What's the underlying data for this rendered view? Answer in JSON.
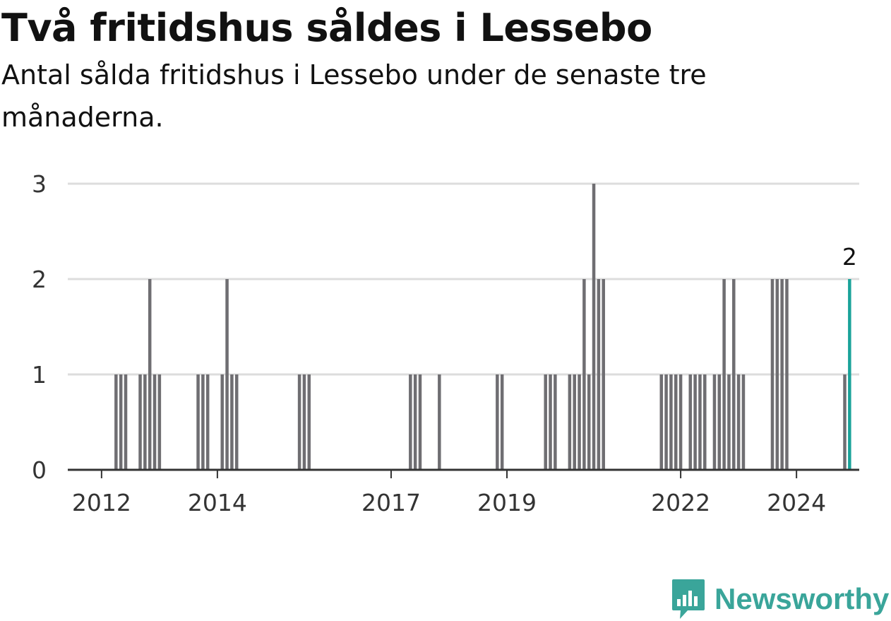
{
  "header": {
    "title": "Två fritidshus såldes i Lessebo",
    "subtitle": "Antal sålda fritidshus i Lessebo under de senaste tre månaderna."
  },
  "brand": {
    "name": "Newsworthy",
    "color": "#3aa59a",
    "icon": "bar-chart-speech-bubble-icon"
  },
  "chart_data": {
    "type": "bar",
    "x_axis": {
      "ticks": [
        "2012",
        "2014",
        "2017",
        "2019",
        "2022",
        "2024"
      ]
    },
    "y_axis": {
      "ticks": [
        "0",
        "1",
        "2",
        "3"
      ],
      "ylim": [
        0,
        3
      ]
    },
    "grid": true,
    "colors": {
      "bar": "#6f6e72",
      "highlight": "#1aa39a",
      "grid": "#dddddd",
      "axis": "#333333"
    },
    "highlight_label": "2",
    "bars": [
      {
        "x": "2012-04",
        "y": 1
      },
      {
        "x": "2012-05",
        "y": 1
      },
      {
        "x": "2012-06",
        "y": 1
      },
      {
        "x": "2012-09",
        "y": 1
      },
      {
        "x": "2012-10",
        "y": 1
      },
      {
        "x": "2012-11",
        "y": 2
      },
      {
        "x": "2012-12",
        "y": 1
      },
      {
        "x": "2013-01",
        "y": 1
      },
      {
        "x": "2013-09",
        "y": 1
      },
      {
        "x": "2013-10",
        "y": 1
      },
      {
        "x": "2013-11",
        "y": 1
      },
      {
        "x": "2014-02",
        "y": 1
      },
      {
        "x": "2014-03",
        "y": 2
      },
      {
        "x": "2014-04",
        "y": 1
      },
      {
        "x": "2014-05",
        "y": 1
      },
      {
        "x": "2015-06",
        "y": 1
      },
      {
        "x": "2015-07",
        "y": 1
      },
      {
        "x": "2015-08",
        "y": 1
      },
      {
        "x": "2017-05",
        "y": 1
      },
      {
        "x": "2017-06",
        "y": 1
      },
      {
        "x": "2017-07",
        "y": 1
      },
      {
        "x": "2017-11",
        "y": 1
      },
      {
        "x": "2018-11",
        "y": 1
      },
      {
        "x": "2018-12",
        "y": 1
      },
      {
        "x": "2019-09",
        "y": 1
      },
      {
        "x": "2019-10",
        "y": 1
      },
      {
        "x": "2019-11",
        "y": 1
      },
      {
        "x": "2020-02",
        "y": 1
      },
      {
        "x": "2020-03",
        "y": 1
      },
      {
        "x": "2020-04",
        "y": 1
      },
      {
        "x": "2020-05",
        "y": 2
      },
      {
        "x": "2020-06",
        "y": 1
      },
      {
        "x": "2020-07",
        "y": 3
      },
      {
        "x": "2020-08",
        "y": 2
      },
      {
        "x": "2020-09",
        "y": 2
      },
      {
        "x": "2021-09",
        "y": 1
      },
      {
        "x": "2021-10",
        "y": 1
      },
      {
        "x": "2021-11",
        "y": 1
      },
      {
        "x": "2021-12",
        "y": 1
      },
      {
        "x": "2022-01",
        "y": 1
      },
      {
        "x": "2022-03",
        "y": 1
      },
      {
        "x": "2022-04",
        "y": 1
      },
      {
        "x": "2022-05",
        "y": 1
      },
      {
        "x": "2022-06",
        "y": 1
      },
      {
        "x": "2022-08",
        "y": 1
      },
      {
        "x": "2022-09",
        "y": 1
      },
      {
        "x": "2022-10",
        "y": 2
      },
      {
        "x": "2022-11",
        "y": 1
      },
      {
        "x": "2022-12",
        "y": 2
      },
      {
        "x": "2023-01",
        "y": 1
      },
      {
        "x": "2023-02",
        "y": 1
      },
      {
        "x": "2023-08",
        "y": 2
      },
      {
        "x": "2023-09",
        "y": 2
      },
      {
        "x": "2023-10",
        "y": 2
      },
      {
        "x": "2023-11",
        "y": 2
      },
      {
        "x": "2024-11",
        "y": 1
      },
      {
        "x": "2024-12",
        "y": 2,
        "highlight": true
      }
    ]
  }
}
